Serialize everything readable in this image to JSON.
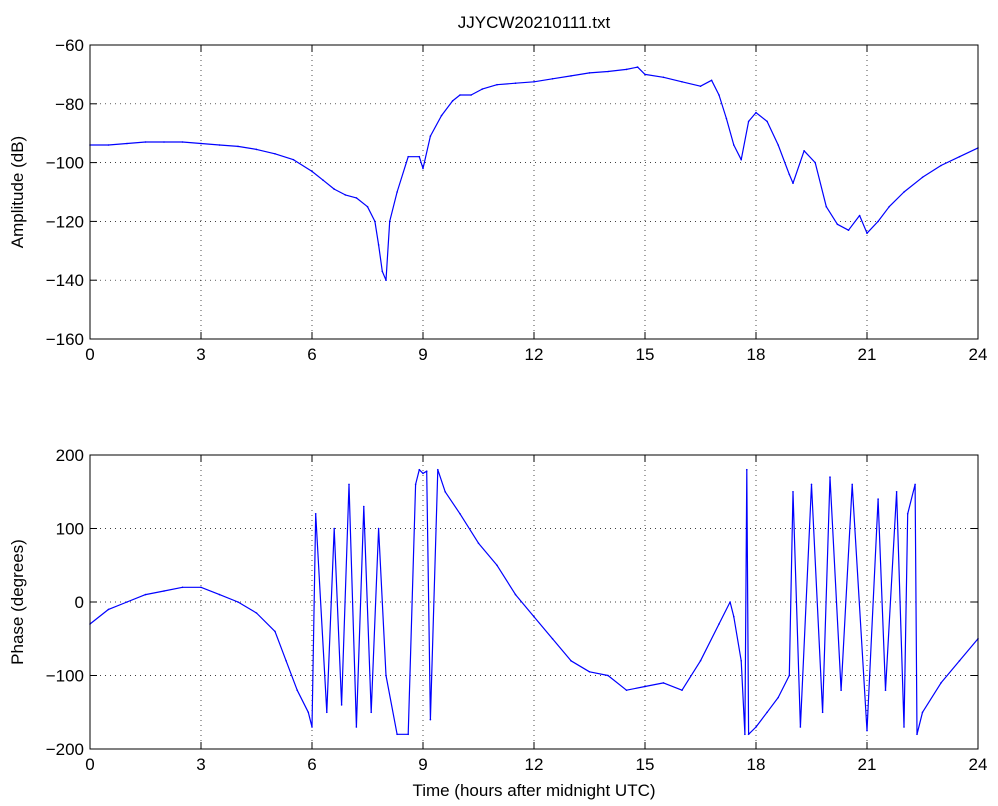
{
  "title": "JJYCW20210111.txt",
  "chart_data": [
    {
      "type": "line",
      "title": "JJYCW20210111.txt",
      "xlabel": "",
      "ylabel": "Amplitude (dB)",
      "xlim": [
        0,
        24
      ],
      "ylim": [
        -160,
        -60
      ],
      "xticks": [
        0,
        3,
        6,
        9,
        12,
        15,
        18,
        21,
        24
      ],
      "yticks": [
        -160,
        -140,
        -120,
        -100,
        -80,
        -60
      ],
      "grid": true,
      "line_color": "#0000ff",
      "series": [
        {
          "x": [
            0,
            0.5,
            1,
            1.5,
            2,
            2.5,
            3,
            3.5,
            4,
            4.5,
            5,
            5.5,
            6,
            6.3,
            6.6,
            6.9,
            7.2,
            7.5,
            7.7,
            7.8,
            7.9,
            8.0,
            8.1,
            8.3,
            8.6,
            8.9,
            9.0,
            9.2,
            9.5,
            9.8,
            10,
            10.3,
            10.6,
            11,
            11.5,
            12,
            12.5,
            13,
            13.5,
            14,
            14.5,
            14.8,
            15,
            15.5,
            16,
            16.5,
            16.8,
            17,
            17.2,
            17.4,
            17.6,
            17.8,
            18,
            18.3,
            18.6,
            18.9,
            19,
            19.3,
            19.6,
            19.9,
            20.2,
            20.5,
            20.8,
            21,
            21.3,
            21.6,
            22,
            22.5,
            23,
            23.5,
            24
          ],
          "y": [
            -94,
            -94,
            -93.5,
            -93,
            -93,
            -93,
            -93.5,
            -94,
            -94.5,
            -95.5,
            -97,
            -99,
            -103,
            -106,
            -109,
            -111,
            -112,
            -115,
            -120,
            -128,
            -137,
            -140,
            -120,
            -110,
            -98,
            -98,
            -102,
            -91,
            -84,
            -79,
            -77,
            -77,
            -75,
            -73.5,
            -73,
            -72.5,
            -71.5,
            -70.5,
            -69.5,
            -69,
            -68.3,
            -67.5,
            -70,
            -71,
            -72.5,
            -74,
            -72,
            -77,
            -85,
            -94,
            -99,
            -86,
            -83,
            -86,
            -94,
            -104,
            -107,
            -96,
            -100,
            -115,
            -121,
            -123,
            -118,
            -124,
            -120,
            -115,
            -110,
            -105,
            -101,
            -98,
            -95
          ]
        }
      ]
    },
    {
      "type": "line",
      "title": "",
      "xlabel": "Time (hours after midnight UTC)",
      "ylabel": "Phase (degrees)",
      "xlim": [
        0,
        24
      ],
      "ylim": [
        -200,
        200
      ],
      "xticks": [
        0,
        3,
        6,
        9,
        12,
        15,
        18,
        21,
        24
      ],
      "yticks": [
        -200,
        -100,
        0,
        100,
        200
      ],
      "grid": true,
      "line_color": "#0000ff",
      "series": [
        {
          "x": [
            0,
            0.5,
            1,
            1.5,
            2,
            2.5,
            3,
            3.5,
            4,
            4.5,
            5,
            5.3,
            5.6,
            5.9,
            6,
            6.1,
            6.4,
            6.6,
            6.8,
            7,
            7.2,
            7.4,
            7.6,
            7.8,
            8,
            8.3,
            8.6,
            8.8,
            8.9,
            9.0,
            9.1,
            9.2,
            9.4,
            9.6,
            10,
            10.5,
            11,
            11.5,
            12,
            12.5,
            13,
            13.5,
            14,
            14.5,
            15,
            15.5,
            16,
            16.5,
            17,
            17.3,
            17.4,
            17.6,
            17.7,
            17.75,
            17.8,
            18,
            18.3,
            18.6,
            18.9,
            19,
            19.2,
            19.5,
            19.8,
            20,
            20.3,
            20.6,
            21,
            21.3,
            21.5,
            21.8,
            22,
            22.1,
            22.3,
            22.35,
            22.5,
            23,
            23.5,
            24
          ],
          "y": [
            -30,
            -10,
            0,
            10,
            15,
            20,
            20,
            10,
            0,
            -15,
            -40,
            -80,
            -120,
            -150,
            -170,
            120,
            -150,
            100,
            -140,
            160,
            -170,
            130,
            -150,
            100,
            -100,
            -180,
            -180,
            160,
            180,
            175,
            178,
            -160,
            180,
            150,
            120,
            80,
            50,
            10,
            -20,
            -50,
            -80,
            -95,
            -100,
            -120,
            -115,
            -110,
            -120,
            -80,
            -30,
            0,
            -20,
            -80,
            -180,
            180,
            -180,
            -170,
            -150,
            -130,
            -100,
            150,
            -170,
            160,
            -150,
            170,
            -120,
            160,
            -175,
            140,
            -120,
            150,
            -170,
            120,
            160,
            -180,
            -150,
            -110,
            -80,
            -50
          ]
        }
      ]
    }
  ]
}
